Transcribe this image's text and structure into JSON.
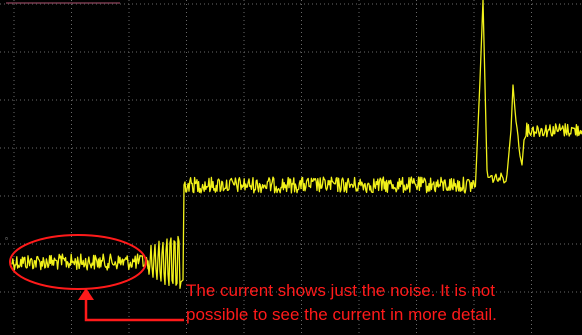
{
  "annotation": {
    "lines": [
      "The current shows just the noise.  It is not",
      "possible to see the current in more detail."
    ]
  }
}
